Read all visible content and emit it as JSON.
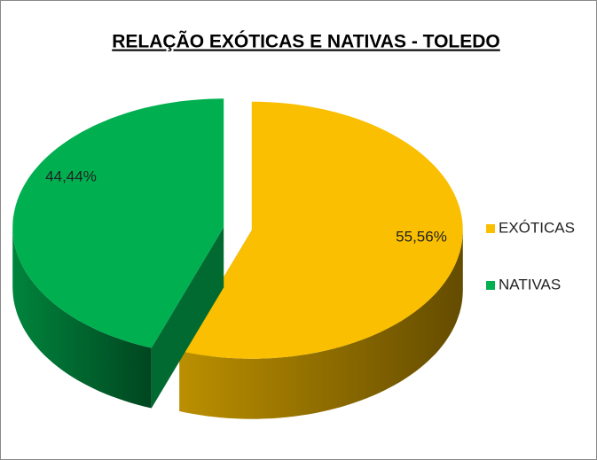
{
  "chart_data": {
    "type": "pie",
    "title": "RELAÇÃO EXÓTICAS E NATIVAS - TOLEDO",
    "categories": [
      "EXÓTICAS",
      "NATIVAS"
    ],
    "values": [
      55.56,
      44.44
    ],
    "value_labels": [
      "55,56%",
      "44,44%"
    ],
    "colors": [
      "#f9bf00",
      "#00b050"
    ],
    "legend": "right"
  }
}
